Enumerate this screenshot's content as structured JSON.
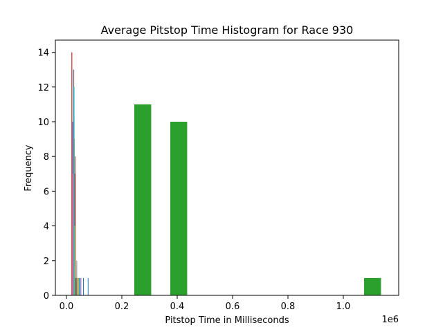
{
  "chart_data": {
    "type": "bar",
    "title": "Average Pitstop Time Histogram for Race 930",
    "xlabel": "Pitstop Time in Milliseconds",
    "ylabel": "Frequency",
    "x_offset_label": "1e6",
    "xlim": [
      -0.04,
      1.2
    ],
    "ylim": [
      0,
      14.7
    ],
    "x_scale_note": "x values in units of 1e6 ms",
    "xticks": [
      {
        "value": 0.0,
        "label": "0.0"
      },
      {
        "value": 0.2,
        "label": "0.2"
      },
      {
        "value": 0.4,
        "label": "0.4"
      },
      {
        "value": 0.6,
        "label": "0.6"
      },
      {
        "value": 0.8,
        "label": "0.8"
      },
      {
        "value": 1.0,
        "label": "1.0"
      }
    ],
    "yticks": [
      {
        "value": 0,
        "label": "0"
      },
      {
        "value": 2,
        "label": "2"
      },
      {
        "value": 4,
        "label": "4"
      },
      {
        "value": 6,
        "label": "6"
      },
      {
        "value": 8,
        "label": "8"
      },
      {
        "value": 10,
        "label": "10"
      },
      {
        "value": 12,
        "label": "12"
      },
      {
        "value": 14,
        "label": "14"
      }
    ],
    "series": [
      {
        "color": "#2ca02c",
        "bars": [
          {
            "x0": 0.245,
            "x1": 0.306,
            "value": 11
          },
          {
            "x0": 0.375,
            "x1": 0.436,
            "value": 10
          },
          {
            "x0": 1.075,
            "x1": 1.136,
            "value": 1
          }
        ]
      },
      {
        "color": "#1f77b4",
        "bars": [
          {
            "x0": 0.024,
            "x1": 0.027,
            "value": 13
          },
          {
            "x0": 0.033,
            "x1": 0.035,
            "value": 1
          },
          {
            "x0": 0.047,
            "x1": 0.05,
            "value": 1
          },
          {
            "x0": 0.06,
            "x1": 0.062,
            "value": 1
          },
          {
            "x0": 0.077,
            "x1": 0.079,
            "value": 1
          }
        ]
      },
      {
        "color": "#ff7f0e",
        "bars": [
          {
            "x0": 0.027,
            "x1": 0.03,
            "value": 9
          },
          {
            "x0": 0.041,
            "x1": 0.043,
            "value": 1
          }
        ]
      },
      {
        "color": "#d62728",
        "bars": [
          {
            "x0": 0.018,
            "x1": 0.021,
            "value": 14
          },
          {
            "x0": 0.029,
            "x1": 0.031,
            "value": 7
          }
        ]
      },
      {
        "color": "#9467bd",
        "bars": [
          {
            "x0": 0.021,
            "x1": 0.024,
            "value": 10
          },
          {
            "x0": 0.051,
            "x1": 0.053,
            "value": 1
          }
        ]
      },
      {
        "color": "#8c564b",
        "bars": [
          {
            "x0": 0.031,
            "x1": 0.033,
            "value": 8
          },
          {
            "x0": 0.035,
            "x1": 0.037,
            "value": 1
          }
        ]
      },
      {
        "color": "#e377c2",
        "bars": [
          {
            "x0": 0.022,
            "x1": 0.025,
            "value": 7
          }
        ]
      },
      {
        "color": "#7f7f7f",
        "bars": [
          {
            "x0": 0.025,
            "x1": 0.028,
            "value": 13
          },
          {
            "x0": 0.036,
            "x1": 0.038,
            "value": 2
          }
        ]
      },
      {
        "color": "#bcbd22",
        "bars": [
          {
            "x0": 0.028,
            "x1": 0.031,
            "value": 4
          },
          {
            "x0": 0.039,
            "x1": 0.041,
            "value": 1
          }
        ]
      },
      {
        "color": "#17becf",
        "bars": [
          {
            "x0": 0.026,
            "x1": 0.029,
            "value": 12
          },
          {
            "x0": 0.044,
            "x1": 0.046,
            "value": 1
          }
        ]
      }
    ]
  }
}
